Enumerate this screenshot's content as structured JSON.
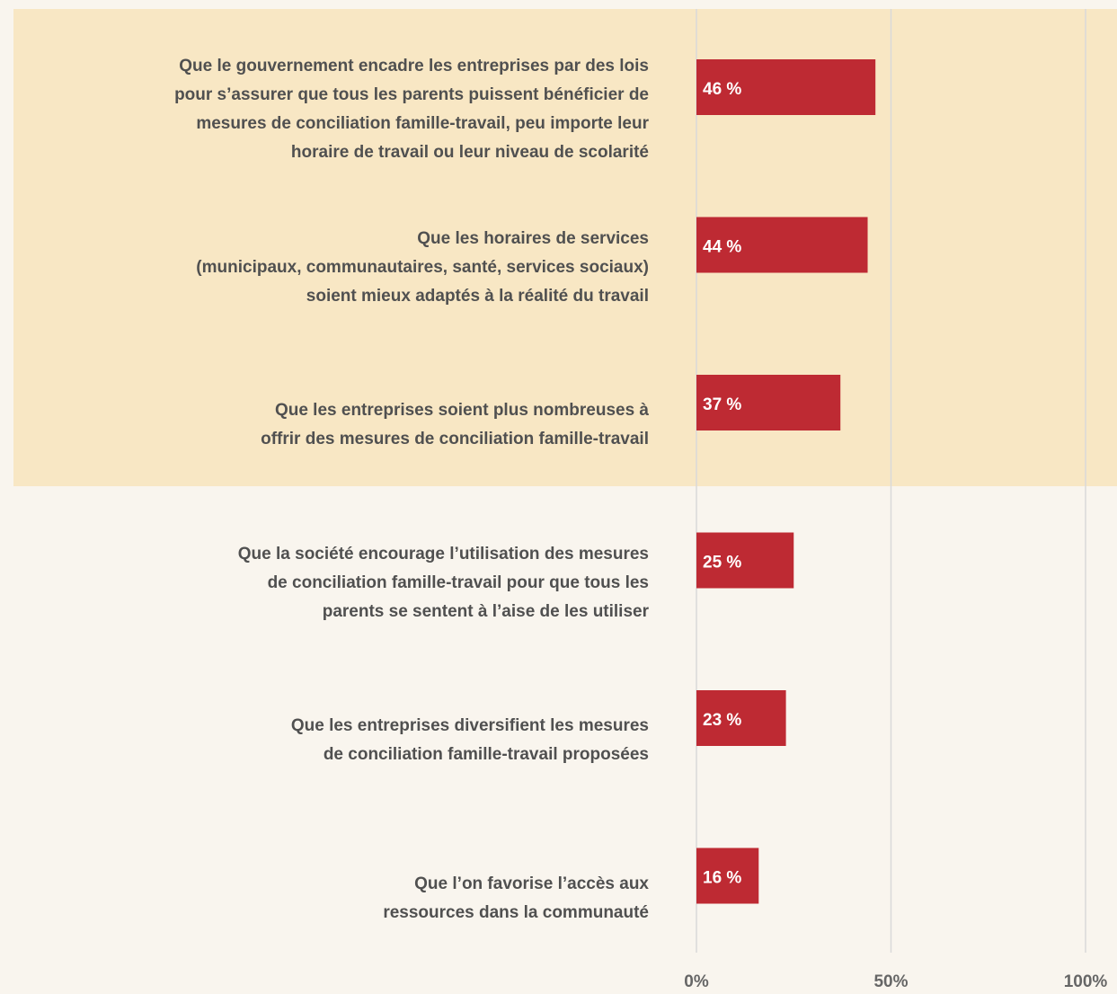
{
  "chart_data": {
    "type": "bar",
    "orientation": "horizontal",
    "categories": [
      "Que le gouvernement encadre les entreprises par des lois\npour s’assurer que tous les parents puissent bénéficier de\nmesures de conciliation famille-travail, peu importe leur\nhoraire de travail ou leur niveau de scolarité",
      "Que les horaires de services\n(municipaux, communautaires, santé, services sociaux)\nsoient mieux adaptés à la réalité du travail",
      "Que les entreprises soient plus nombreuses à\noffrir des mesures de conciliation famille-travail",
      "Que la société encourage l’utilisation des mesures\nde conciliation famille-travail pour que tous les\nparents se sentent à l’aise de les utiliser",
      "Que les entreprises diversifient les mesures\nde conciliation famille-travail proposées",
      "Que l’on favorise l’accès aux\nressources dans la communauté"
    ],
    "values": [
      46,
      44,
      37,
      25,
      23,
      16
    ],
    "value_labels": [
      "46 %",
      "44 %",
      "37 %",
      "25 %",
      "23 %",
      "16 %"
    ],
    "color": "#be2a33",
    "xlim": [
      0,
      100
    ],
    "xticks": [
      {
        "value": 0,
        "label": "0%"
      },
      {
        "value": 50,
        "label": "50%"
      },
      {
        "value": 100,
        "label": "100%"
      }
    ],
    "grid": true
  }
}
